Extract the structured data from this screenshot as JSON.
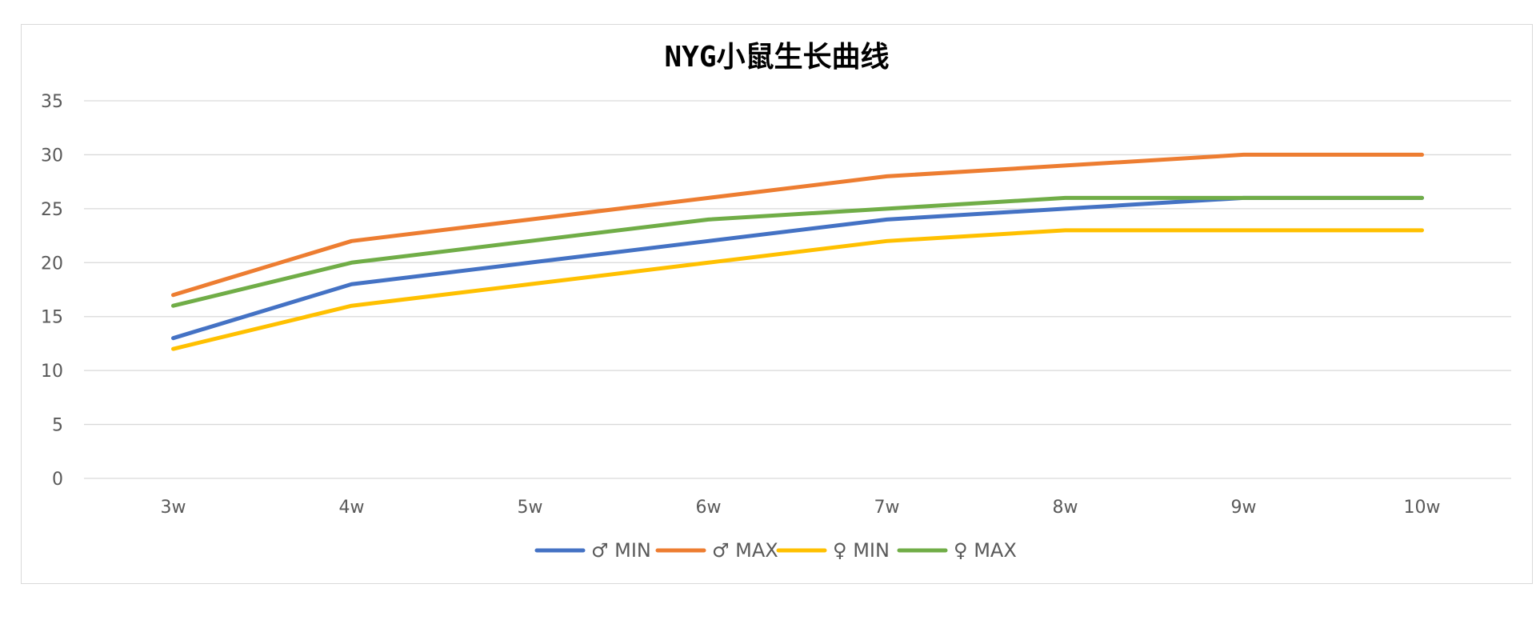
{
  "chart_data": {
    "type": "line",
    "title": "NYG小鼠生长曲线",
    "categories": [
      "3w",
      "4w",
      "5w",
      "6w",
      "7w",
      "8w",
      "9w",
      "10w"
    ],
    "ylim": [
      0,
      35
    ],
    "yticks": [
      0,
      5,
      10,
      15,
      20,
      25,
      30,
      35
    ],
    "grid": true,
    "legend_position": "bottom",
    "series": [
      {
        "name": "♂ MIN",
        "color": "#4472C4",
        "values": [
          13,
          18,
          20,
          22,
          24,
          25,
          26,
          26
        ]
      },
      {
        "name": "♂ MAX",
        "color": "#ED7D31",
        "values": [
          17,
          22,
          24,
          26,
          28,
          29,
          30,
          30
        ]
      },
      {
        "name": "♀ MIN",
        "color": "#FFC000",
        "values": [
          12,
          16,
          18,
          20,
          22,
          23,
          23,
          23
        ]
      },
      {
        "name": "♀ MAX",
        "color": "#70AD47",
        "values": [
          16,
          20,
          22,
          24,
          25,
          26,
          26,
          26
        ]
      }
    ]
  }
}
